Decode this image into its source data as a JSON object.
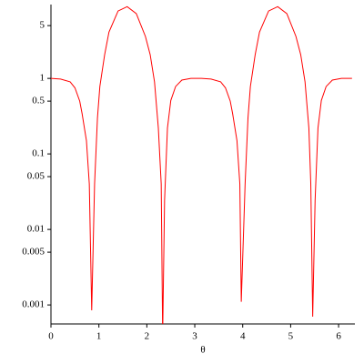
{
  "chart_data": {
    "type": "line",
    "xlabel": "θ",
    "log_y": true,
    "x": [
      0,
      0.2,
      0.4,
      0.5,
      0.6,
      0.65,
      0.74,
      0.8,
      0.85,
      0.91,
      0.97,
      1.02,
      1.12,
      1.21,
      1.4,
      1.59,
      1.78,
      1.97,
      2.07,
      2.16,
      2.24,
      2.3,
      2.33,
      2.37,
      2.43,
      2.5,
      2.6,
      2.73,
      2.92,
      3.14,
      3.34,
      3.54,
      3.64,
      3.74,
      3.79,
      3.88,
      3.94,
      3.97,
      4.05,
      4.11,
      4.16,
      4.26,
      4.35,
      4.54,
      4.73,
      4.92,
      5.11,
      5.21,
      5.3,
      5.38,
      5.42,
      5.46,
      5.51,
      5.57,
      5.64,
      5.74,
      5.87,
      6.06,
      6.28
    ],
    "series": [
      {
        "color": "#ff0000",
        "values": [
          1,
          0.98,
          0.9,
          0.75,
          0.5,
          0.34,
          0.15,
          0.04,
          0.00085,
          0.04,
          0.3,
          0.78,
          2.06,
          4.1,
          7.8,
          8.9,
          7.2,
          3.6,
          2.06,
          0.9,
          0.22,
          0.04,
          0.0004,
          0.0243,
          0.22,
          0.51,
          0.78,
          0.95,
          1,
          1,
          0.98,
          0.9,
          0.75,
          0.5,
          0.34,
          0.15,
          0.04,
          0.0011,
          0.04,
          0.3,
          0.78,
          2.06,
          4.1,
          7.8,
          8.9,
          7.2,
          3.6,
          2.06,
          0.9,
          0.22,
          0.04,
          0.0007,
          0.0243,
          0.22,
          0.51,
          0.78,
          0.95,
          1,
          1
        ]
      }
    ],
    "xlim": [
      0,
      6.2832
    ],
    "ylim": [
      0.00056,
      9.5
    ],
    "xticks": [
      0,
      1,
      2,
      3,
      4,
      5,
      6
    ],
    "yticks": [
      0.001,
      0.005,
      0.01,
      0.05,
      0.1,
      0.5,
      1,
      5
    ]
  }
}
